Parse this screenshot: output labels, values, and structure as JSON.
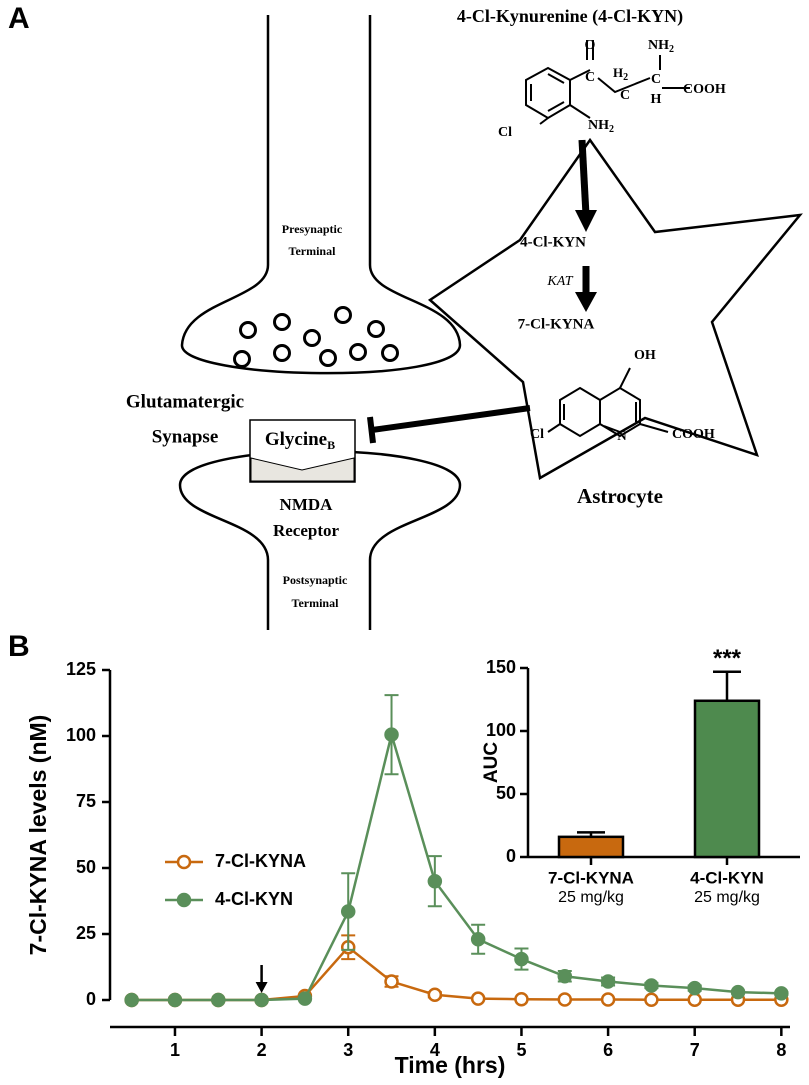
{
  "panel_a": {
    "label": "A",
    "title": "4-Cl-Kynurenine (4-Cl-KYN)",
    "molecule_1": [
      {
        "text": "O"
      },
      {
        "text": "NH",
        "sub": "2"
      },
      {
        "text": "C"
      },
      {
        "text": "H",
        "sub": "2"
      },
      {
        "text": "C"
      },
      {
        "text": "C"
      },
      {
        "text": "H"
      },
      {
        "text": "COOH"
      },
      {
        "text": "Cl"
      },
      {
        "text": "NH",
        "sub": "2"
      }
    ],
    "step_1": "4-Cl-KYN",
    "enzyme": "KAT",
    "step_2": "7-Cl-KYNA",
    "molecule_2": [
      {
        "text": "OH"
      },
      {
        "text": "Cl"
      },
      {
        "text": "N"
      },
      {
        "text": "COOH"
      }
    ],
    "presynaptic": [
      "Presynaptic",
      "Terminal"
    ],
    "synapse": [
      "Glutamatergic",
      "Synapse"
    ],
    "glycine": {
      "text": "Glycine",
      "sub": "B"
    },
    "receptor": [
      "NMDA",
      "Receptor"
    ],
    "postsynaptic": [
      "Postsynaptic",
      "Terminal"
    ],
    "astrocyte": "Astrocyte"
  },
  "panel_b_label": "B",
  "chart_data": [
    {
      "type": "line",
      "x_label": "Time (hrs)",
      "y_label": "7-Cl-KYNA levels (nM)",
      "x": [
        0.5,
        1,
        1.5,
        2,
        2.5,
        3,
        3.5,
        4,
        4.5,
        5,
        5.5,
        6,
        6.5,
        7,
        7.5,
        8
      ],
      "series": [
        {
          "name": "7-Cl-KYNA",
          "color": "#c8690f",
          "marker": "open-circle",
          "values": [
            0,
            0,
            0,
            0,
            1.5,
            20,
            7,
            2,
            0.5,
            0.3,
            0.2,
            0.2,
            0.1,
            0.1,
            0.1,
            0.1
          ],
          "errors": [
            0,
            0,
            0,
            0,
            0.5,
            4.5,
            2,
            1,
            0.3,
            0.2,
            0.1,
            0.1,
            0.1,
            0.1,
            0.1,
            0.1
          ]
        },
        {
          "name": "4-Cl-KYN",
          "color": "#5a8f5a",
          "marker": "filled-circle",
          "values": [
            0,
            0,
            0,
            0,
            0.5,
            33.5,
            100.5,
            45,
            23,
            15.5,
            9,
            7,
            5.5,
            4.5,
            3,
            2.5
          ],
          "errors": [
            0,
            0,
            0,
            0,
            0.3,
            14.5,
            15,
            9.5,
            5.5,
            4,
            2,
            1.5,
            1,
            1,
            0.5,
            0.5
          ]
        }
      ],
      "xlim": [
        0.25,
        8.1
      ],
      "xticks": [
        1,
        2,
        3,
        4,
        5,
        6,
        7,
        8
      ],
      "ylim": [
        0,
        125
      ],
      "yticks": [
        0,
        25,
        50,
        75,
        100,
        125
      ],
      "arrow_x": 2,
      "legend": "center-left"
    },
    {
      "type": "bar",
      "y_label": "AUC",
      "categories": [
        "7-Cl-KYNA",
        "4-Cl-KYN"
      ],
      "category_sublabels": [
        "25 mg/kg",
        "25 mg/kg"
      ],
      "values": [
        16,
        124
      ],
      "errors": [
        3.5,
        23
      ],
      "colors": [
        "#c8690f",
        "#4e8a4e"
      ],
      "significance": [
        null,
        "***"
      ],
      "ylim": [
        0,
        150
      ],
      "yticks": [
        0,
        50,
        100,
        150
      ]
    }
  ]
}
